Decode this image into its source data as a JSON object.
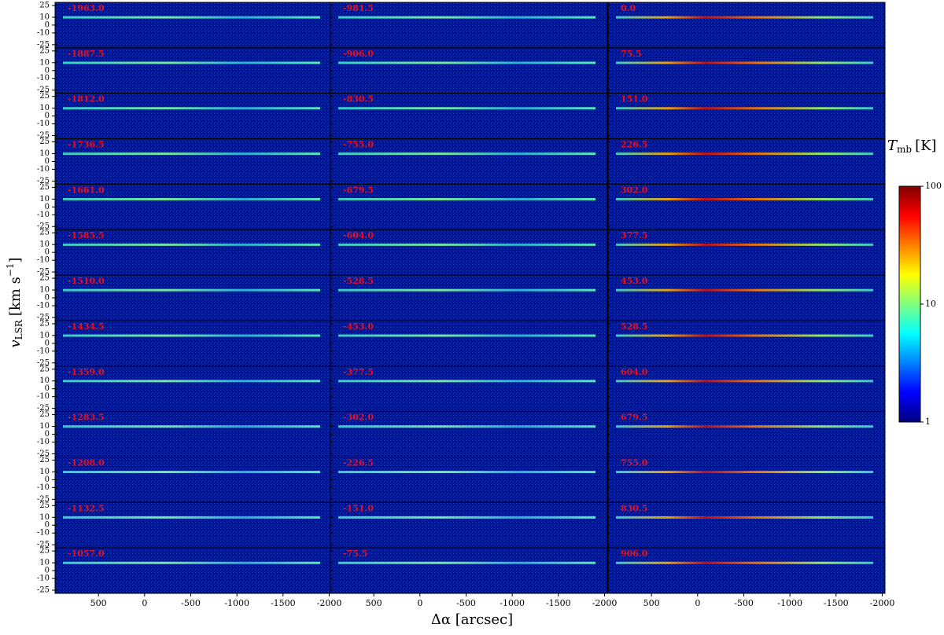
{
  "chart_data": {
    "type": "pv-grid",
    "columns": 3,
    "rows": 13,
    "panel_labels": [
      "-1963.0",
      "-1887.5",
      "-1812.0",
      "-1736.5",
      "-1661.0",
      "-1585.5",
      "-1510.0",
      "-1434.5",
      "-1359.0",
      "-1283.5",
      "-1208.0",
      "-1132.5",
      "-1057.0",
      "-981.5",
      "-906.0",
      "-830.5",
      "-755.0",
      "-679.5",
      "-604.0",
      "-528.5",
      "-453.0",
      "-377.5",
      "-302.0",
      "-226.5",
      "-151.0",
      "-75.5",
      "0.0",
      "75.5",
      "151.0",
      "226.5",
      "302.0",
      "377.5",
      "453.0",
      "528.5",
      "604.0",
      "679.5",
      "755.0",
      "830.5",
      "906.0"
    ],
    "label_color": "#e8101a",
    "xlim": [
      970,
      -2030
    ],
    "xticks": [
      500,
      0,
      -500,
      -1000,
      -1500,
      -2000
    ],
    "ylim": [
      -29,
      29
    ],
    "yticks": [
      25,
      10,
      0,
      -10,
      -25
    ],
    "x_label": "Δα [arcsec]",
    "y_label": {
      "symbol": "v",
      "subscript": "LSR",
      "unit": "[km s",
      "exponent": "−1",
      "close": "]"
    },
    "colorbar": {
      "symbol": "T",
      "subscript": "mb",
      "unit": "[K]",
      "lim": [
        1,
        100
      ],
      "ticks": [
        1,
        10,
        100
      ],
      "log": true
    }
  }
}
